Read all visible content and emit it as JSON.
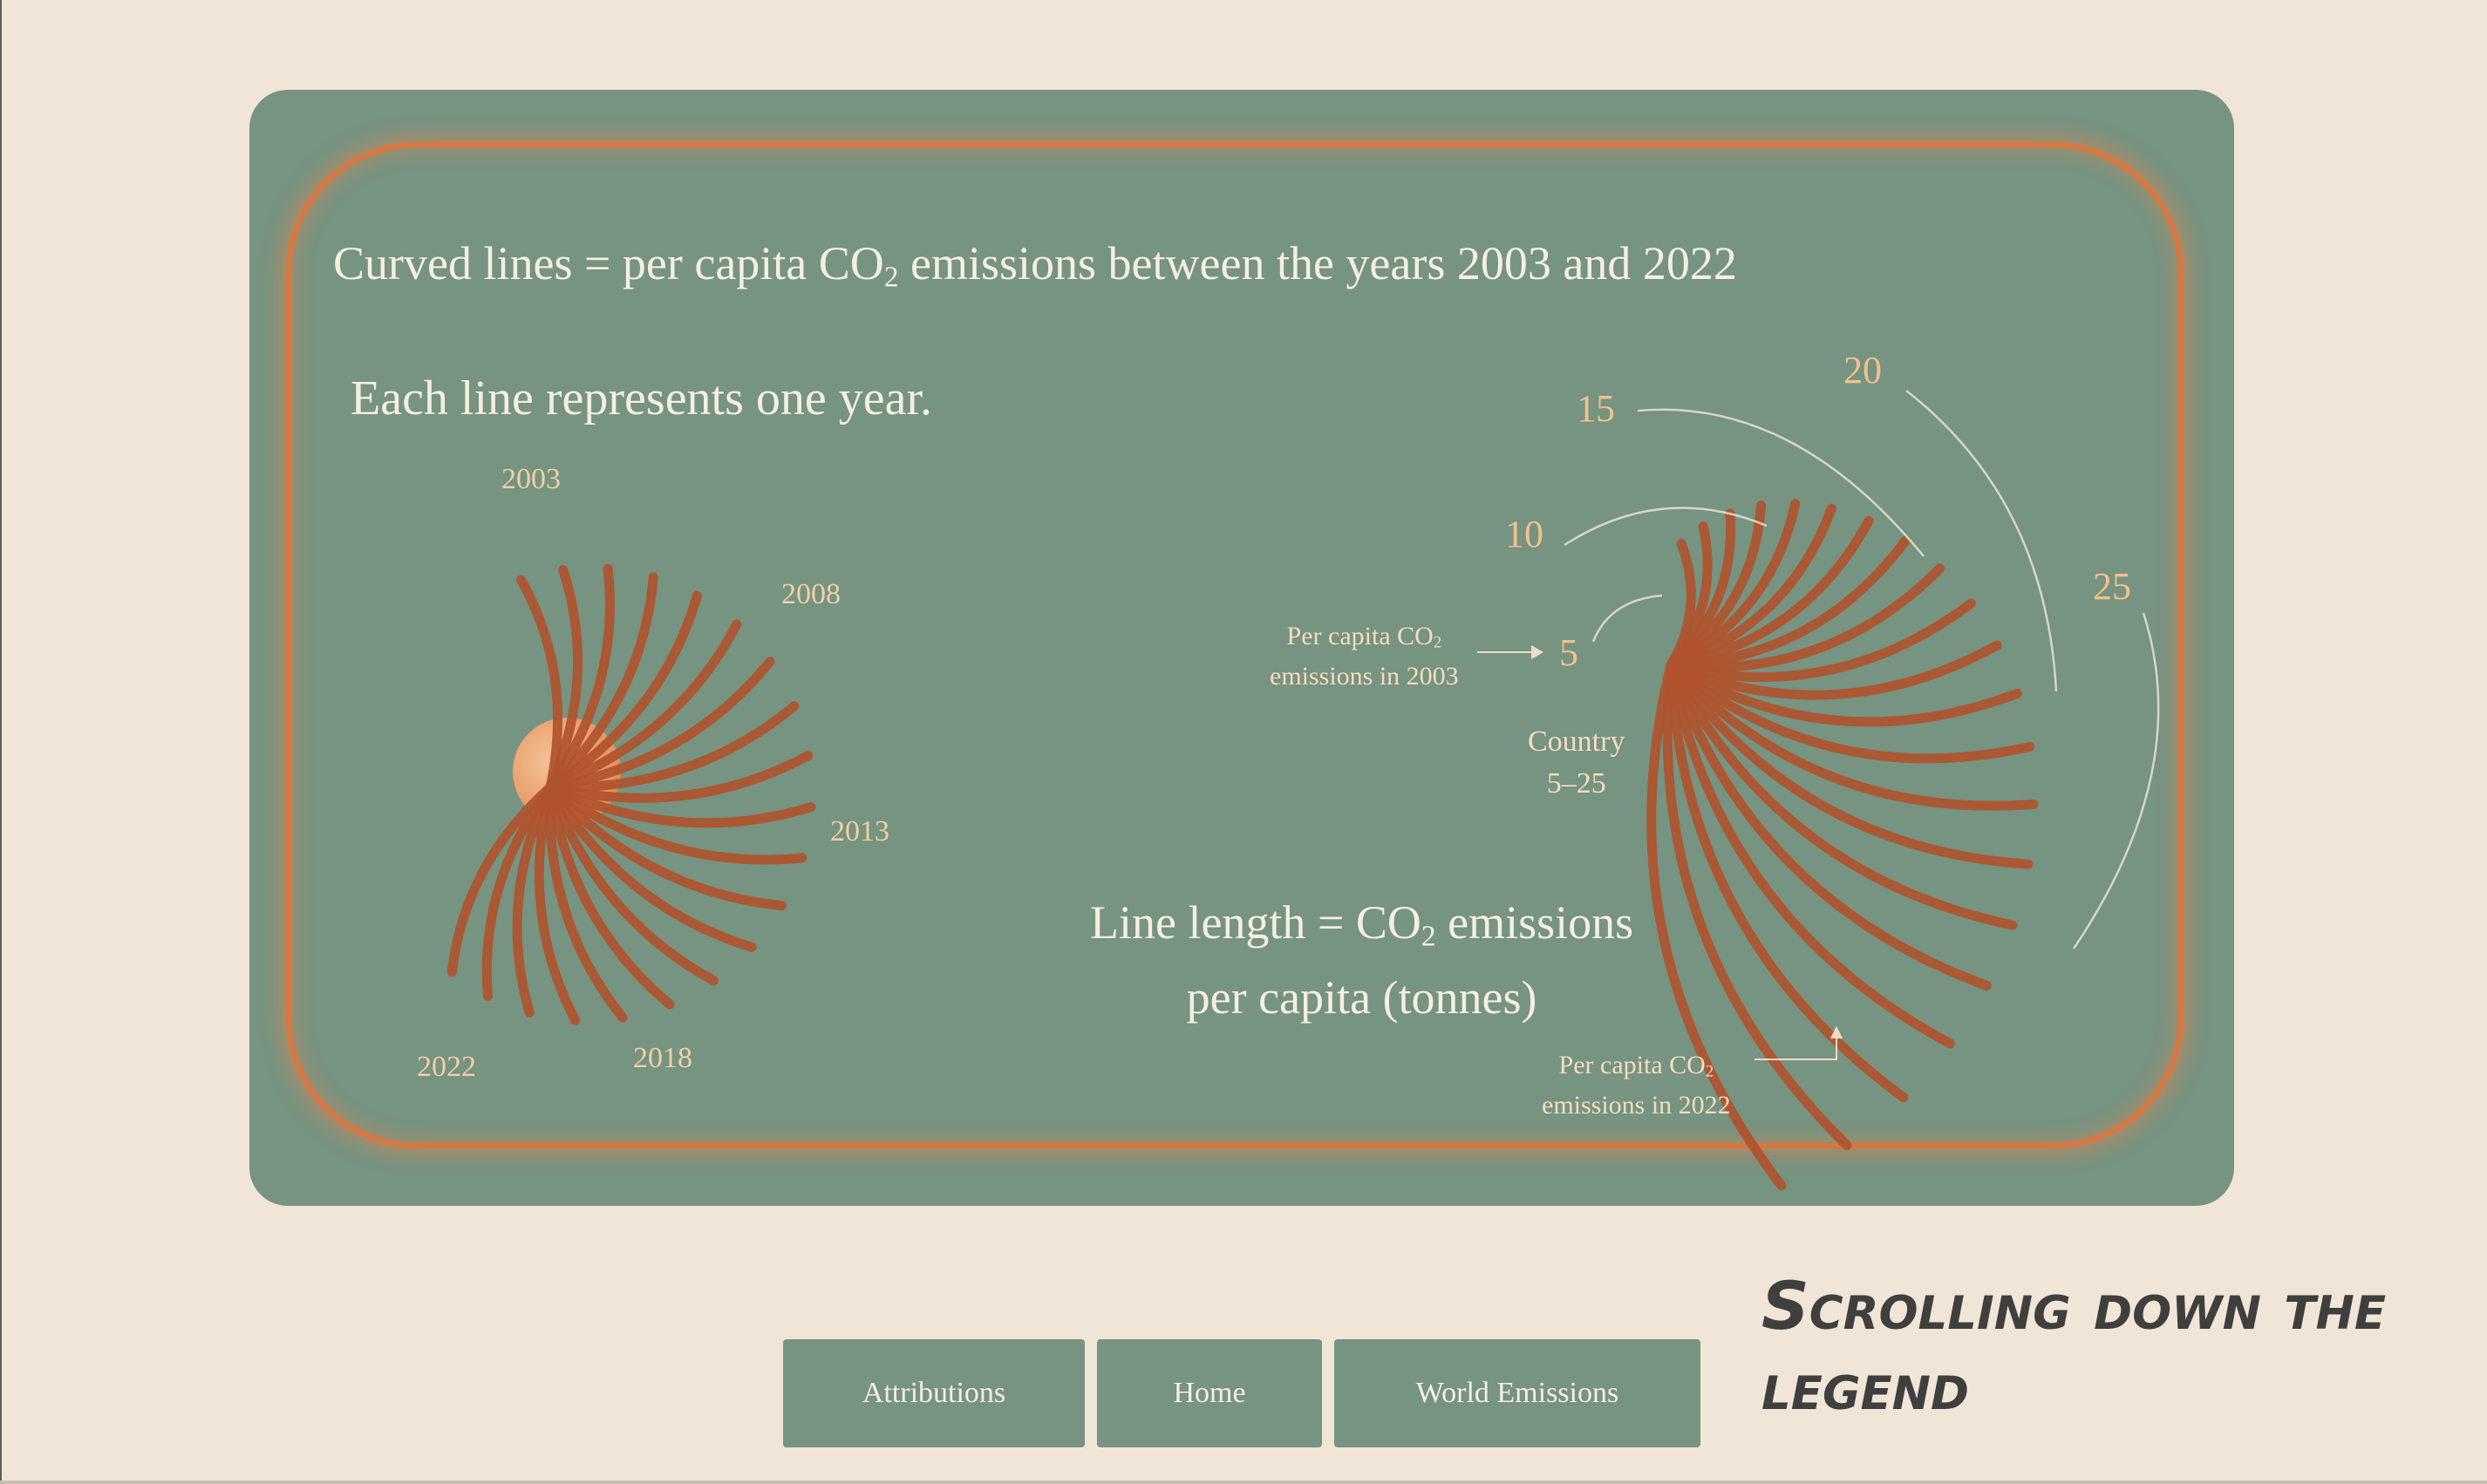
{
  "legend": {
    "title_pre": "Curved lines = per capita CO",
    "title_sub": "2",
    "title_post": " emissions between the years 2003 and 2022",
    "subtitle": "Each line represents one year.",
    "year_labels": [
      "2003",
      "2008",
      "2013",
      "2018",
      "2022"
    ],
    "axis_labels": [
      "5",
      "10",
      "15",
      "20",
      "25"
    ],
    "note_start_l1_pre": "Per capita CO",
    "note_start_l1_sub": "2",
    "note_start_l2": "emissions in 2003",
    "country_l1": "Country",
    "country_l2": "5–25",
    "length_l1_pre": "Line length = ",
    "length_l1_mid": "CO",
    "length_l1_sub": "2",
    "length_l1_post": " emissions",
    "length_l2": "per capita (tonnes)",
    "note_end_l1_pre": "Per capita CO",
    "note_end_l1_sub": "2",
    "note_end_l2": "emissions in 2022"
  },
  "nav": {
    "attributions": "Attributions",
    "home": "Home",
    "world_emissions": "World Emissions"
  },
  "caption": "Scrolling down the legend",
  "colors": {
    "background": "#f0e5d6",
    "panel": "#779381",
    "frame_glow": "#d8763f",
    "curve": "#b0532e",
    "label": "#f2c08e"
  }
}
